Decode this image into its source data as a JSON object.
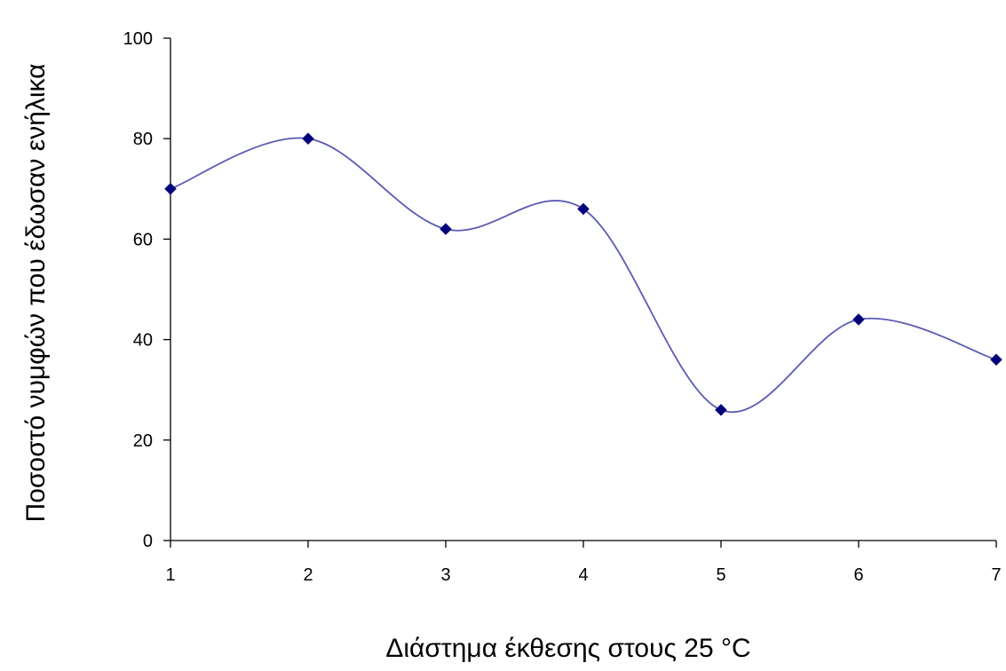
{
  "chart_data": {
    "type": "line",
    "title": "",
    "xlabel": "Διάστημα έκθεσης στους 25 °C",
    "ylabel": "Ποσοστό νυμφών που έδωσαν ενήλικα",
    "x": [
      1,
      2,
      3,
      4,
      5,
      6,
      7
    ],
    "xticks": [
      "1",
      "2",
      "3",
      "4",
      "5",
      "6",
      "7"
    ],
    "yticks": [
      "0",
      "20",
      "40",
      "60",
      "80",
      "100"
    ],
    "ylim": [
      0,
      100
    ],
    "grid": false,
    "smooth": true,
    "series": [
      {
        "values": [
          70,
          80,
          62,
          66,
          26,
          44,
          36
        ],
        "line_color": "#5b5bb5",
        "marker_color": "#00007a",
        "marker": "diamond"
      }
    ]
  }
}
